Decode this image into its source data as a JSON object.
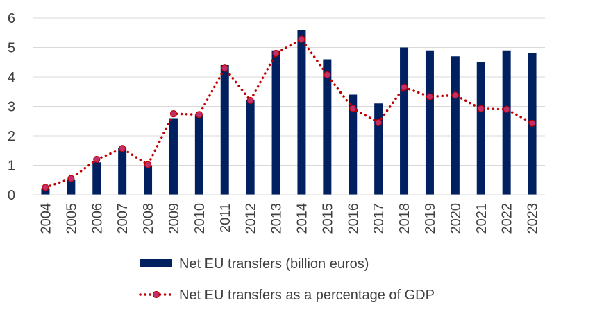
{
  "chart_data": {
    "type": "bar",
    "title": "",
    "xlabel": "",
    "ylabel": "",
    "categories": [
      "2004",
      "2005",
      "2006",
      "2007",
      "2008",
      "2009",
      "2010",
      "2011",
      "2012",
      "2013",
      "2014",
      "2015",
      "2016",
      "2017",
      "2018",
      "2019",
      "2020",
      "2021",
      "2022",
      "2023"
    ],
    "ylim": [
      0,
      6
    ],
    "yticks": [
      0,
      1,
      2,
      3,
      4,
      5,
      6
    ],
    "grid": true,
    "legend_position": "bottom",
    "series": [
      {
        "name": "Net EU transfers (billion euros)",
        "type": "bar",
        "color": "#002060",
        "values": [
          0.2,
          0.5,
          1.1,
          1.6,
          1.0,
          2.6,
          2.7,
          4.4,
          3.2,
          4.9,
          5.6,
          4.6,
          3.4,
          3.1,
          5.0,
          4.9,
          4.7,
          4.5,
          4.9,
          4.8
        ]
      },
      {
        "name": "Net EU transfers as a percentage of GDP",
        "type": "line",
        "line_style": "dotted",
        "marker": "circle",
        "color": "#c00000",
        "marker_fill": "#c0306a",
        "values": [
          0.25,
          0.55,
          1.2,
          1.57,
          1.02,
          2.75,
          2.72,
          4.3,
          3.2,
          4.8,
          5.28,
          4.07,
          2.93,
          2.45,
          3.65,
          3.33,
          3.38,
          2.92,
          2.9,
          2.43
        ]
      }
    ]
  }
}
